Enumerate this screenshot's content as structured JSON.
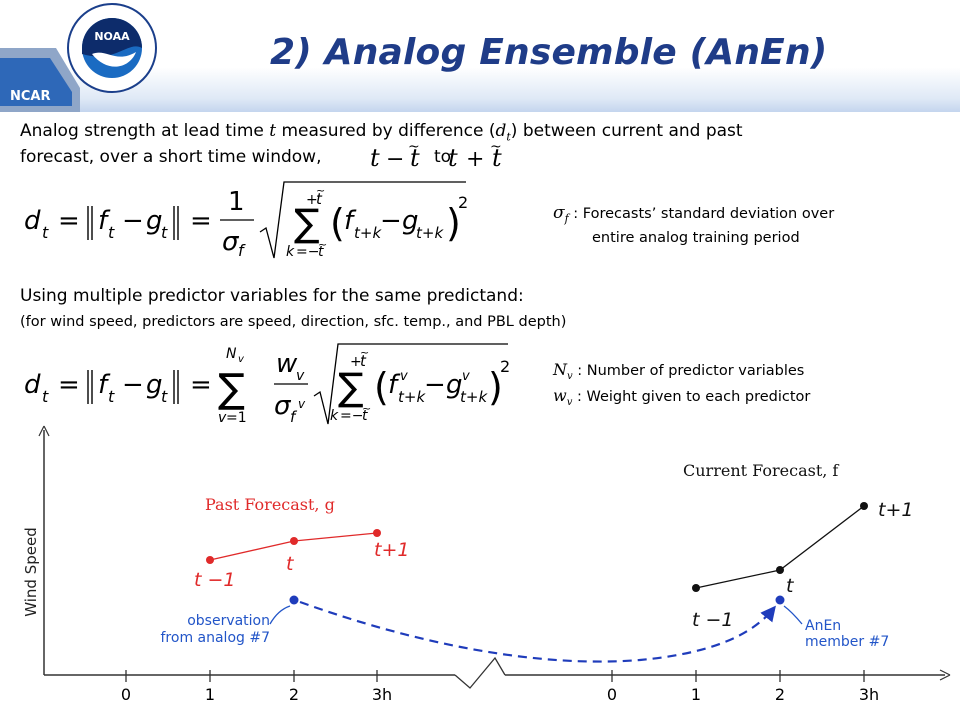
{
  "header": {
    "title": "2) Analog Ensemble (AnEn)",
    "ncar_label": "NCAR",
    "noaa_label": "NOAA"
  },
  "intro": {
    "line1_a": "Analog strength at lead time ",
    "line1_t": "t",
    "line1_b": " measured by difference (",
    "line1_d": "d",
    "line1_dsub": "t",
    "line1_c": ") between current and past",
    "line2_a": "forecast, over a short time window,",
    "line2_to": "to"
  },
  "sigma_note": {
    "symbol": "σ",
    "sub": "f",
    "line1": " :  Forecasts’ standard deviation over",
    "line2": "entire analog training period"
  },
  "multi": {
    "line1": "Using multiple predictor variables for the same predictand:",
    "line2": "(for wind speed, predictors are speed, direction, sfc. temp., and PBL depth)"
  },
  "nv_note": {
    "nv_symbol": "N",
    "nv_sub": "v",
    "nv_text": " :  Number of predictor variables",
    "wv_symbol": "w",
    "wv_sub": "v",
    "wv_text": " :  Weight given to each predictor"
  },
  "diagram": {
    "y_axis_label": "Wind Speed",
    "past_label": "Past Forecast, g",
    "current_label": "Current Forecast, f",
    "tm1": "t −1",
    "t": "t",
    "tp1": "t+1",
    "obs_line1": "observation",
    "obs_line2": "from analog #7",
    "anen_line1": "AnEn",
    "anen_line2": "member #7",
    "left_ticks": [
      "0",
      "1",
      "2",
      "3h"
    ],
    "right_ticks": [
      "0",
      "1",
      "2",
      "3h"
    ],
    "colors": {
      "past": "#e02a2a",
      "current": "#111111",
      "obs": "#1f3cbb",
      "callout": "#2255c8"
    }
  }
}
